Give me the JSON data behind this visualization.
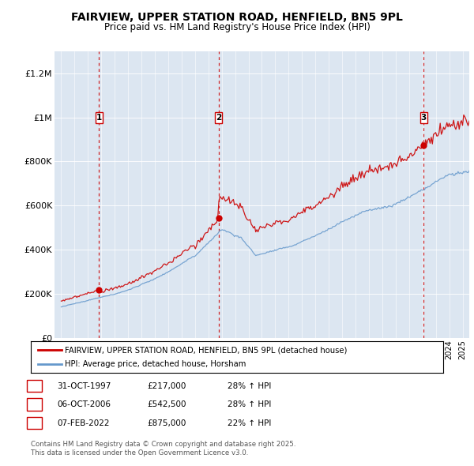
{
  "title": "FAIRVIEW, UPPER STATION ROAD, HENFIELD, BN5 9PL",
  "subtitle": "Price paid vs. HM Land Registry's House Price Index (HPI)",
  "legend_line1": "FAIRVIEW, UPPER STATION ROAD, HENFIELD, BN5 9PL (detached house)",
  "legend_line2": "HPI: Average price, detached house, Horsham",
  "footnote": "Contains HM Land Registry data © Crown copyright and database right 2025.\nThis data is licensed under the Open Government Licence v3.0.",
  "sale_color": "#cc0000",
  "hpi_color": "#6699cc",
  "background_color": "#dce6f1",
  "ylim": [
    0,
    1300000
  ],
  "yticks": [
    0,
    200000,
    400000,
    600000,
    800000,
    1000000,
    1200000
  ],
  "ytick_labels": [
    "£0",
    "£200K",
    "£400K",
    "£600K",
    "£800K",
    "£1M",
    "£1.2M"
  ],
  "sales": [
    {
      "date_num": 1997.83,
      "price": 217000,
      "label": "1"
    },
    {
      "date_num": 2006.76,
      "price": 542500,
      "label": "2"
    },
    {
      "date_num": 2022.09,
      "price": 875000,
      "label": "3"
    }
  ],
  "table_rows": [
    [
      "1",
      "31-OCT-1997",
      "£217,000",
      "28% ↑ HPI"
    ],
    [
      "2",
      "06-OCT-2006",
      "£542,500",
      "28% ↑ HPI"
    ],
    [
      "3",
      "07-FEB-2022",
      "£875,000",
      "22% ↑ HPI"
    ]
  ],
  "xlim": [
    1994.5,
    2025.5
  ],
  "xtick_start": 1995,
  "xtick_end": 2025
}
